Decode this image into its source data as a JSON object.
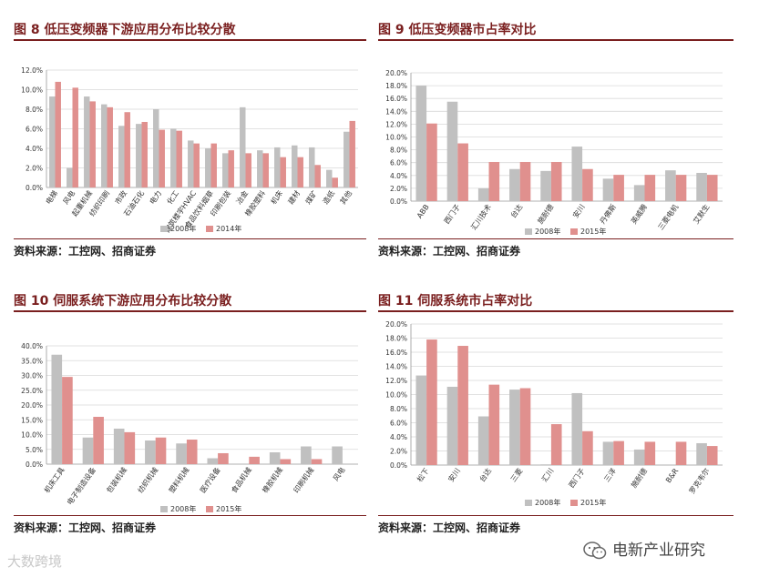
{
  "colors": {
    "series_a": "#c0c0c0",
    "series_b": "#e0908e",
    "title": "#7a1f1f"
  },
  "panels": [
    {
      "title": "图 8  低压变频器下游应用分布比较分散",
      "source": "资料来源：工控网、招商证券",
      "chart_data": {
        "type": "bar",
        "categories": [
          "电梯",
          "风电",
          "起重机械",
          "纺织印刷",
          "市政",
          "石油石化",
          "电力",
          "化工",
          "建筑楼宇HVAC",
          "食品饮料烟草",
          "印刷包装",
          "冶金",
          "橡胶塑料",
          "机床",
          "建材",
          "煤矿",
          "造纸",
          "其他"
        ],
        "series": [
          {
            "name": "2008年",
            "values": [
              9.3,
              2.0,
              9.3,
              8.5,
              6.3,
              6.5,
              8.0,
              6.0,
              4.8,
              4.0,
              3.5,
              8.2,
              3.8,
              4.1,
              4.3,
              4.1,
              1.8,
              5.7
            ]
          },
          {
            "name": "2014年",
            "values": [
              10.8,
              10.2,
              8.8,
              8.2,
              7.7,
              6.7,
              5.9,
              5.8,
              4.5,
              4.5,
              3.8,
              3.5,
              3.5,
              3.1,
              3.1,
              2.3,
              1.0,
              6.8
            ]
          }
        ],
        "ylim": [
          0,
          12
        ],
        "yticks": [
          "0.0%",
          "2.0%",
          "4.0%",
          "6.0%",
          "8.0%",
          "10.0%",
          "12.0%"
        ]
      }
    },
    {
      "title": "图 9  低压变频器市占率对比",
      "source": "资料来源：工控网、招商证券",
      "chart_data": {
        "type": "bar",
        "categories": [
          "ABB",
          "西门子",
          "汇川技术",
          "台达",
          "施耐德",
          "安川",
          "丹佛斯",
          "英威腾",
          "三菱电机",
          "艾默生"
        ],
        "series": [
          {
            "name": "2008年",
            "values": [
              18.0,
              15.5,
              2.0,
              5.0,
              4.7,
              8.5,
              3.5,
              2.5,
              4.8,
              4.4
            ]
          },
          {
            "name": "2015年",
            "values": [
              12.1,
              9.0,
              6.1,
              6.1,
              6.1,
              5.0,
              4.1,
              4.1,
              4.1,
              4.1
            ]
          }
        ],
        "ylim": [
          0,
          20
        ],
        "yticks": [
          "0.0%",
          "2.0%",
          "4.0%",
          "6.0%",
          "8.0%",
          "10.0%",
          "12.0%",
          "14.0%",
          "16.0%",
          "18.0%",
          "20.0%"
        ]
      }
    },
    {
      "title": "图 10  伺服系统下游应用分布比较分散",
      "source": "资料来源：工控网、招商证券",
      "chart_data": {
        "type": "bar",
        "categories": [
          "机床工具",
          "电子制造设备",
          "包装机械",
          "纺织机械",
          "塑料机械",
          "医疗设备",
          "食品机械",
          "橡胶机械",
          "印刷机械",
          "风电"
        ],
        "series": [
          {
            "name": "2008年",
            "values": [
              37.0,
              9.0,
              12.0,
              8.0,
              7.0,
              2.0,
              0,
              4.0,
              6.0,
              6.0
            ]
          },
          {
            "name": "2015年",
            "values": [
              29.5,
              16.0,
              10.8,
              9.0,
              8.3,
              3.7,
              2.5,
              1.7,
              1.7,
              0
            ]
          }
        ],
        "ylim": [
          0,
          40
        ],
        "yticks": [
          "0.0%",
          "5.0%",
          "10.0%",
          "15.0%",
          "20.0%",
          "25.0%",
          "30.0%",
          "35.0%",
          "40.0%"
        ]
      }
    },
    {
      "title": "图 11  伺服系统市占率对比",
      "source": "资料来源：工控网、招商证券",
      "chart_data": {
        "type": "bar",
        "categories": [
          "松下",
          "安川",
          "台达",
          "三菱",
          "汇川",
          "西门子",
          "三洋",
          "施耐德",
          "B&R",
          "罗克韦尔"
        ],
        "series": [
          {
            "name": "2008年",
            "values": [
              12.7,
              11.1,
              6.9,
              10.7,
              0.1,
              10.2,
              3.3,
              2.2,
              0,
              3.1
            ]
          },
          {
            "name": "2015年",
            "values": [
              17.8,
              16.9,
              11.4,
              10.9,
              5.8,
              4.8,
              3.4,
              3.3,
              3.3,
              2.7
            ]
          }
        ],
        "ylim": [
          0,
          20
        ],
        "yticks": [
          "0.0%",
          "2.0%",
          "4.0%",
          "6.0%",
          "8.0%",
          "10.0%",
          "12.0%",
          "14.0%",
          "16.0%",
          "18.0%",
          "20.0%"
        ]
      }
    }
  ],
  "watermark_left": "大数跨境",
  "watermark_right": "电新产业研究"
}
